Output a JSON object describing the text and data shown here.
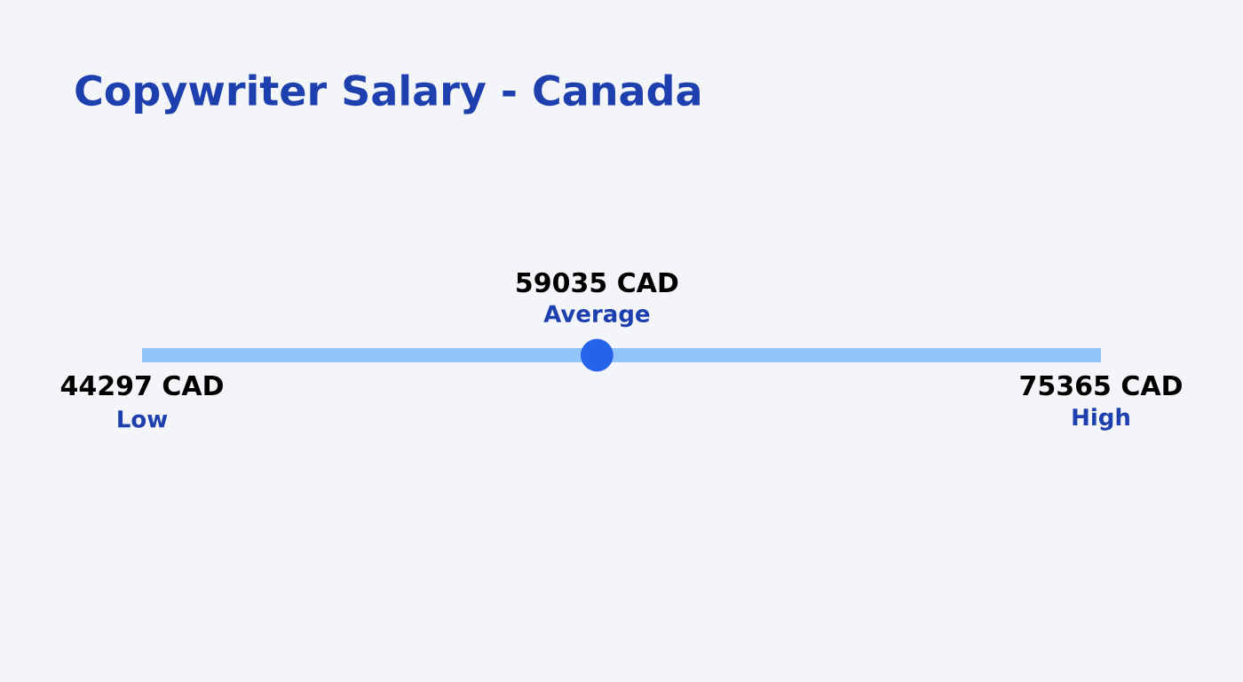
{
  "chart_data": {
    "type": "other",
    "title": "Copywriter Salary - Canada",
    "categories": [
      "Low",
      "Average",
      "High"
    ],
    "values": [
      44297,
      59035,
      75365
    ],
    "value_labels": [
      "44297 CAD",
      "59035 CAD",
      "75365 CAD"
    ],
    "colors": [
      "#93c5fd",
      "#2563eb",
      "#93c5fd"
    ]
  }
}
